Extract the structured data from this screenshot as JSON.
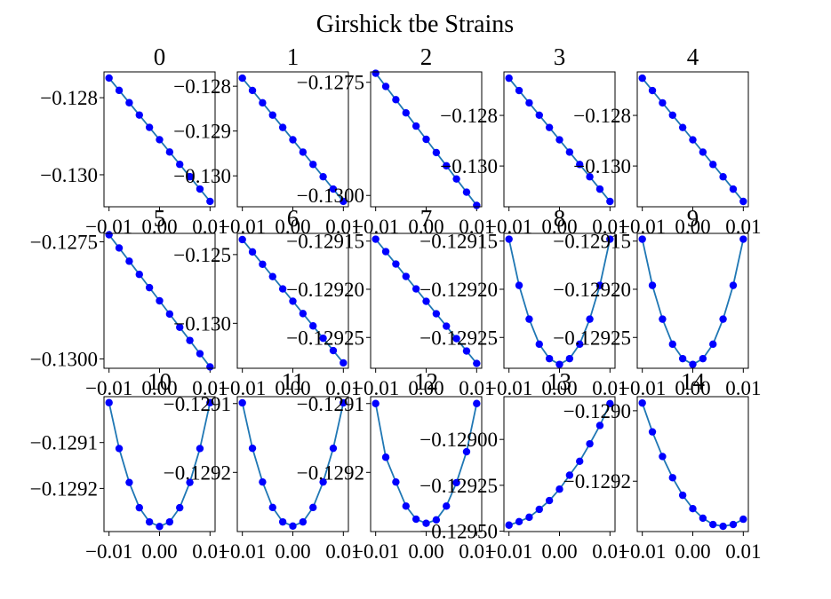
{
  "title": "Girshick tbe Strains",
  "chart_data": [
    {
      "type": "line",
      "title": "0",
      "line_color": "#1f77b4",
      "marker_color": "#0000ff",
      "x": [
        -0.01,
        -0.008,
        -0.006,
        -0.004,
        -0.002,
        0,
        0.002,
        0.004,
        0.006,
        0.008,
        0.01
      ],
      "values": [
        -0.12749,
        -0.12781,
        -0.12813,
        -0.12845,
        -0.12877,
        -0.12909,
        -0.12941,
        -0.12973,
        -0.13005,
        -0.13037,
        -0.13069
      ],
      "xlim": [
        -0.011,
        0.011
      ],
      "ylim": [
        -0.13083,
        -0.12733
      ],
      "xticks": [
        {
          "value": -0.01,
          "label": "−0.01"
        },
        {
          "value": 0,
          "label": "0.00"
        },
        0.01
      ],
      "yticks": [
        {
          "value": -0.128,
          "label": "−0.128"
        },
        {
          "value": -0.13,
          "label": "−0.130"
        }
      ]
    },
    {
      "type": "line",
      "title": "1",
      "line_color": "#1f77b4",
      "marker_color": "#0000ff",
      "x": [
        -0.01,
        -0.008,
        -0.006,
        -0.004,
        -0.002,
        0,
        0.002,
        0.004,
        0.006,
        0.008,
        0.01
      ],
      "values": [
        -0.12782,
        -0.128095,
        -0.12837,
        -0.128645,
        -0.12892,
        -0.129195,
        -0.12947,
        -0.129745,
        -0.13002,
        -0.130295,
        -0.13057
      ],
      "xlim": [
        -0.011,
        0.011
      ],
      "ylim": [
        -0.13069,
        -0.12768
      ],
      "xticks": [
        {
          "value": -0.01,
          "label": "−0.01"
        },
        {
          "value": 0,
          "label": "0.00"
        },
        0.01
      ],
      "yticks": [
        {
          "value": -0.128,
          "label": "−0.128"
        },
        {
          "value": -0.129,
          "label": "−0.129"
        },
        {
          "value": -0.13,
          "label": "−0.130"
        }
      ]
    },
    {
      "type": "line",
      "title": "2",
      "line_color": "#1f77b4",
      "marker_color": "#0000ff",
      "x": [
        -0.01,
        -0.008,
        -0.006,
        -0.004,
        -0.002,
        0,
        0.002,
        0.004,
        0.006,
        0.008,
        0.01
      ],
      "values": [
        -0.1273,
        -0.127592,
        -0.127884,
        -0.128176,
        -0.128468,
        -0.12876,
        -0.129052,
        -0.129344,
        -0.129636,
        -0.129928,
        -0.13022
      ],
      "xlim": [
        -0.011,
        0.011
      ],
      "ylim": [
        -0.13025,
        -0.12727
      ],
      "xticks": [
        {
          "value": -0.01,
          "label": "−0.01"
        },
        {
          "value": 0,
          "label": "0.00"
        },
        0.01
      ],
      "yticks": [
        {
          "value": -0.1275,
          "label": "−0.1275"
        },
        {
          "value": -0.13,
          "label": "−0.1300"
        }
      ]
    },
    {
      "type": "line",
      "title": "3",
      "line_color": "#1f77b4",
      "marker_color": "#0000ff",
      "x": [
        -0.01,
        -0.008,
        -0.006,
        -0.004,
        -0.002,
        0,
        0.002,
        0.004,
        0.006,
        0.008,
        0.01
      ],
      "values": [
        -0.12653,
        -0.127017,
        -0.127504,
        -0.127991,
        -0.128478,
        -0.128965,
        -0.129452,
        -0.129939,
        -0.130426,
        -0.130913,
        -0.1314
      ],
      "xlim": [
        -0.011,
        0.011
      ],
      "ylim": [
        -0.13161,
        -0.12628
      ],
      "xticks": [
        {
          "value": -0.01,
          "label": "−0.01"
        },
        {
          "value": 0,
          "label": "0.00"
        },
        0.01
      ],
      "yticks": [
        {
          "value": -0.128,
          "label": "−0.128"
        },
        {
          "value": -0.13,
          "label": "−0.130"
        }
      ]
    },
    {
      "type": "line",
      "title": "4",
      "line_color": "#1f77b4",
      "marker_color": "#0000ff",
      "x": [
        -0.01,
        -0.008,
        -0.006,
        -0.004,
        -0.002,
        0,
        0.002,
        0.004,
        0.006,
        0.008,
        0.01
      ],
      "values": [
        -0.12653,
        -0.127017,
        -0.127504,
        -0.127991,
        -0.128478,
        -0.128965,
        -0.129452,
        -0.129939,
        -0.130426,
        -0.130913,
        -0.1314
      ],
      "xlim": [
        -0.011,
        0.011
      ],
      "ylim": [
        -0.13161,
        -0.12628
      ],
      "xticks": [
        {
          "value": -0.01,
          "label": "−0.01"
        },
        {
          "value": 0,
          "label": "0.00"
        },
        0.01
      ],
      "yticks": [
        {
          "value": -0.128,
          "label": "−0.128"
        },
        {
          "value": -0.13,
          "label": "−0.130"
        }
      ]
    },
    {
      "type": "line",
      "title": "5",
      "line_color": "#1f77b4",
      "marker_color": "#0000ff",
      "x": [
        -0.01,
        -0.008,
        -0.006,
        -0.004,
        -0.002,
        0,
        0.002,
        0.004,
        0.006,
        0.008,
        0.01
      ],
      "values": [
        -0.12735,
        -0.127632,
        -0.127914,
        -0.128196,
        -0.128478,
        -0.12876,
        -0.129042,
        -0.129324,
        -0.129606,
        -0.129888,
        -0.13017
      ],
      "xlim": [
        -0.011,
        0.011
      ],
      "ylim": [
        -0.1302,
        -0.12732
      ],
      "xticks": [
        {
          "value": -0.01,
          "label": "−0.01"
        },
        {
          "value": 0,
          "label": "0.00"
        },
        0.01
      ],
      "yticks": [
        {
          "value": -0.1275,
          "label": "−0.1275"
        },
        {
          "value": -0.13,
          "label": "−0.1300"
        }
      ]
    },
    {
      "type": "line",
      "title": "6",
      "line_color": "#1f77b4",
      "marker_color": "#0000ff",
      "x": [
        -0.01,
        -0.008,
        -0.006,
        -0.004,
        -0.002,
        0,
        0.002,
        0.004,
        0.006,
        0.008,
        0.01
      ],
      "values": [
        -0.12391,
        -0.124807,
        -0.125704,
        -0.126601,
        -0.127498,
        -0.128395,
        -0.129292,
        -0.130189,
        -0.131086,
        -0.131983,
        -0.13288
      ],
      "xlim": [
        -0.011,
        0.011
      ],
      "ylim": [
        -0.13327,
        -0.12346
      ],
      "xticks": [
        {
          "value": -0.01,
          "label": "−0.01"
        },
        {
          "value": 0,
          "label": "0.00"
        },
        0.01
      ],
      "yticks": [
        {
          "value": -0.125,
          "label": "−0.125"
        },
        {
          "value": -0.13,
          "label": "−0.130"
        }
      ]
    },
    {
      "type": "line",
      "title": "7",
      "line_color": "#1f77b4",
      "marker_color": "#0000ff",
      "x": [
        -0.01,
        -0.008,
        -0.006,
        -0.004,
        -0.002,
        0,
        0.002,
        0.004,
        0.006,
        0.008,
        0.01
      ],
      "values": [
        -0.129148,
        -0.1291609,
        -0.1291738,
        -0.1291867,
        -0.1291996,
        -0.1292125,
        -0.1292254,
        -0.1292383,
        -0.1292512,
        -0.1292641,
        -0.129277
      ],
      "xlim": [
        -0.011,
        0.011
      ],
      "ylim": [
        -0.129282,
        -0.129142
      ],
      "xticks": [
        {
          "value": -0.01,
          "label": "−0.01"
        },
        {
          "value": 0,
          "label": "0.00"
        },
        0.01
      ],
      "yticks": [
        {
          "value": -0.12915,
          "label": "−0.12915"
        },
        {
          "value": -0.1292,
          "label": "−0.12920"
        },
        {
          "value": -0.12925,
          "label": "−0.12925"
        }
      ]
    },
    {
      "type": "line",
      "title": "8",
      "line_color": "#1f77b4",
      "marker_color": "#0000ff",
      "x": [
        -0.01,
        -0.008,
        -0.006,
        -0.004,
        -0.002,
        0,
        0.002,
        0.004,
        0.006,
        0.008,
        0.01
      ],
      "values": [
        -0.129148,
        -0.129196,
        -0.129231,
        -0.129257,
        -0.129272,
        -0.129278,
        -0.129272,
        -0.129257,
        -0.129231,
        -0.129196,
        -0.129148
      ],
      "xlim": [
        -0.011,
        0.011
      ],
      "ylim": [
        -0.129282,
        -0.129142
      ],
      "xticks": [
        {
          "value": -0.01,
          "label": "−0.01"
        },
        {
          "value": 0,
          "label": "0.00"
        },
        0.01
      ],
      "yticks": [
        {
          "value": -0.12915,
          "label": "−0.12915"
        },
        {
          "value": -0.1292,
          "label": "−0.12920"
        },
        {
          "value": -0.12925,
          "label": "−0.12925"
        }
      ]
    },
    {
      "type": "line",
      "title": "9",
      "line_color": "#1f77b4",
      "marker_color": "#0000ff",
      "x": [
        -0.01,
        -0.008,
        -0.006,
        -0.004,
        -0.002,
        0,
        0.002,
        0.004,
        0.006,
        0.008,
        0.01
      ],
      "values": [
        -0.129148,
        -0.129196,
        -0.129231,
        -0.129257,
        -0.129272,
        -0.129278,
        -0.129272,
        -0.129257,
        -0.129231,
        -0.129196,
        -0.129148
      ],
      "xlim": [
        -0.011,
        0.011
      ],
      "ylim": [
        -0.129282,
        -0.129142
      ],
      "xticks": [
        {
          "value": -0.01,
          "label": "−0.01"
        },
        {
          "value": 0,
          "label": "0.00"
        },
        0.01
      ],
      "yticks": [
        {
          "value": -0.12915,
          "label": "−0.12915"
        },
        {
          "value": -0.1292,
          "label": "−0.12920"
        },
        {
          "value": -0.12925,
          "label": "−0.12925"
        }
      ]
    },
    {
      "type": "line",
      "title": "10",
      "line_color": "#1f77b4",
      "marker_color": "#0000ff",
      "x": [
        -0.01,
        -0.008,
        -0.006,
        -0.004,
        -0.002,
        0,
        0.002,
        0.004,
        0.006,
        0.008,
        0.01
      ],
      "values": [
        -0.129013,
        -0.129113,
        -0.129187,
        -0.129242,
        -0.129273,
        -0.129283,
        -0.129273,
        -0.129242,
        -0.129187,
        -0.129113,
        -0.129013
      ],
      "xlim": [
        -0.011,
        0.011
      ],
      "ylim": [
        -0.129294,
        -0.129
      ],
      "xticks": [
        {
          "value": -0.01,
          "label": "−0.01"
        },
        {
          "value": 0,
          "label": "0.00"
        },
        0.01
      ],
      "yticks": [
        {
          "value": -0.1291,
          "label": "−0.1291"
        },
        {
          "value": -0.1292,
          "label": "−0.1292"
        }
      ]
    },
    {
      "type": "line",
      "title": "11",
      "line_color": "#1f77b4",
      "marker_color": "#0000ff",
      "x": [
        -0.01,
        -0.008,
        -0.006,
        -0.004,
        -0.002,
        0,
        0.002,
        0.004,
        0.006,
        0.008,
        0.01
      ],
      "values": [
        -0.129099,
        -0.129165,
        -0.129214,
        -0.129251,
        -0.129272,
        -0.129278,
        -0.129272,
        -0.129251,
        -0.129214,
        -0.129165,
        -0.129099
      ],
      "xlim": [
        -0.011,
        0.011
      ],
      "ylim": [
        -0.129286,
        -0.12909
      ],
      "xticks": [
        {
          "value": -0.01,
          "label": "−0.01"
        },
        {
          "value": 0,
          "label": "0.00"
        },
        0.01
      ],
      "yticks": [
        {
          "value": -0.1291,
          "label": "−0.1291"
        },
        {
          "value": -0.1292,
          "label": "−0.1292"
        }
      ]
    },
    {
      "type": "line",
      "title": "12",
      "line_color": "#1f77b4",
      "marker_color": "#0000ff",
      "x": [
        -0.01,
        -0.008,
        -0.006,
        -0.004,
        -0.002,
        0,
        0.002,
        0.004,
        0.006,
        0.008,
        0.01
      ],
      "values": [
        -0.1291,
        -0.129178,
        -0.129214,
        -0.129249,
        -0.129268,
        -0.129274,
        -0.129269,
        -0.129249,
        -0.129215,
        -0.12917,
        -0.1291
      ],
      "xlim": [
        -0.011,
        0.011
      ],
      "ylim": [
        -0.129286,
        -0.12909
      ],
      "xticks": [
        {
          "value": -0.01,
          "label": "−0.01"
        },
        {
          "value": 0,
          "label": "0.00"
        },
        0.01
      ],
      "yticks": [
        {
          "value": -0.1291,
          "label": "−0.1291"
        },
        {
          "value": -0.1292,
          "label": "−0.1292"
        }
      ]
    },
    {
      "type": "line",
      "title": "13",
      "line_color": "#1f77b4",
      "marker_color": "#0000ff",
      "x": [
        -0.01,
        -0.008,
        -0.006,
        -0.004,
        -0.002,
        0,
        0.002,
        0.004,
        0.006,
        0.008,
        0.01
      ],
      "values": [
        -0.129467,
        -0.129448,
        -0.129424,
        -0.129381,
        -0.129333,
        -0.129271,
        -0.129195,
        -0.129119,
        -0.129024,
        -0.128924,
        -0.128805
      ],
      "xlim": [
        -0.011,
        0.011
      ],
      "ylim": [
        -0.129502,
        -0.128767
      ],
      "xticks": [
        {
          "value": -0.01,
          "label": "−0.01"
        },
        {
          "value": 0,
          "label": "0.00"
        },
        0.01
      ],
      "yticks": [
        {
          "value": -0.129,
          "label": "−0.12900"
        },
        {
          "value": -0.12925,
          "label": "−0.12925"
        },
        {
          "value": -0.1295,
          "label": "−0.12950"
        }
      ]
    },
    {
      "type": "line",
      "title": "14",
      "line_color": "#1f77b4",
      "marker_color": "#0000ff",
      "x": [
        -0.01,
        -0.008,
        -0.006,
        -0.004,
        -0.002,
        0,
        0.002,
        0.004,
        0.006,
        0.008,
        0.01
      ],
      "values": [
        -0.128978,
        -0.12906,
        -0.12913,
        -0.12919,
        -0.12924,
        -0.129278,
        -0.129305,
        -0.129323,
        -0.129328,
        -0.129323,
        -0.129308
      ],
      "xlim": [
        -0.011,
        0.011
      ],
      "ylim": [
        -0.129343,
        -0.12896
      ],
      "xticks": [
        {
          "value": -0.01,
          "label": "−0.01"
        },
        {
          "value": 0,
          "label": "0.00"
        },
        0.01
      ],
      "yticks": [
        {
          "value": -0.129,
          "label": "−0.1290"
        },
        {
          "value": -0.1292,
          "label": "−0.1292"
        }
      ]
    }
  ]
}
